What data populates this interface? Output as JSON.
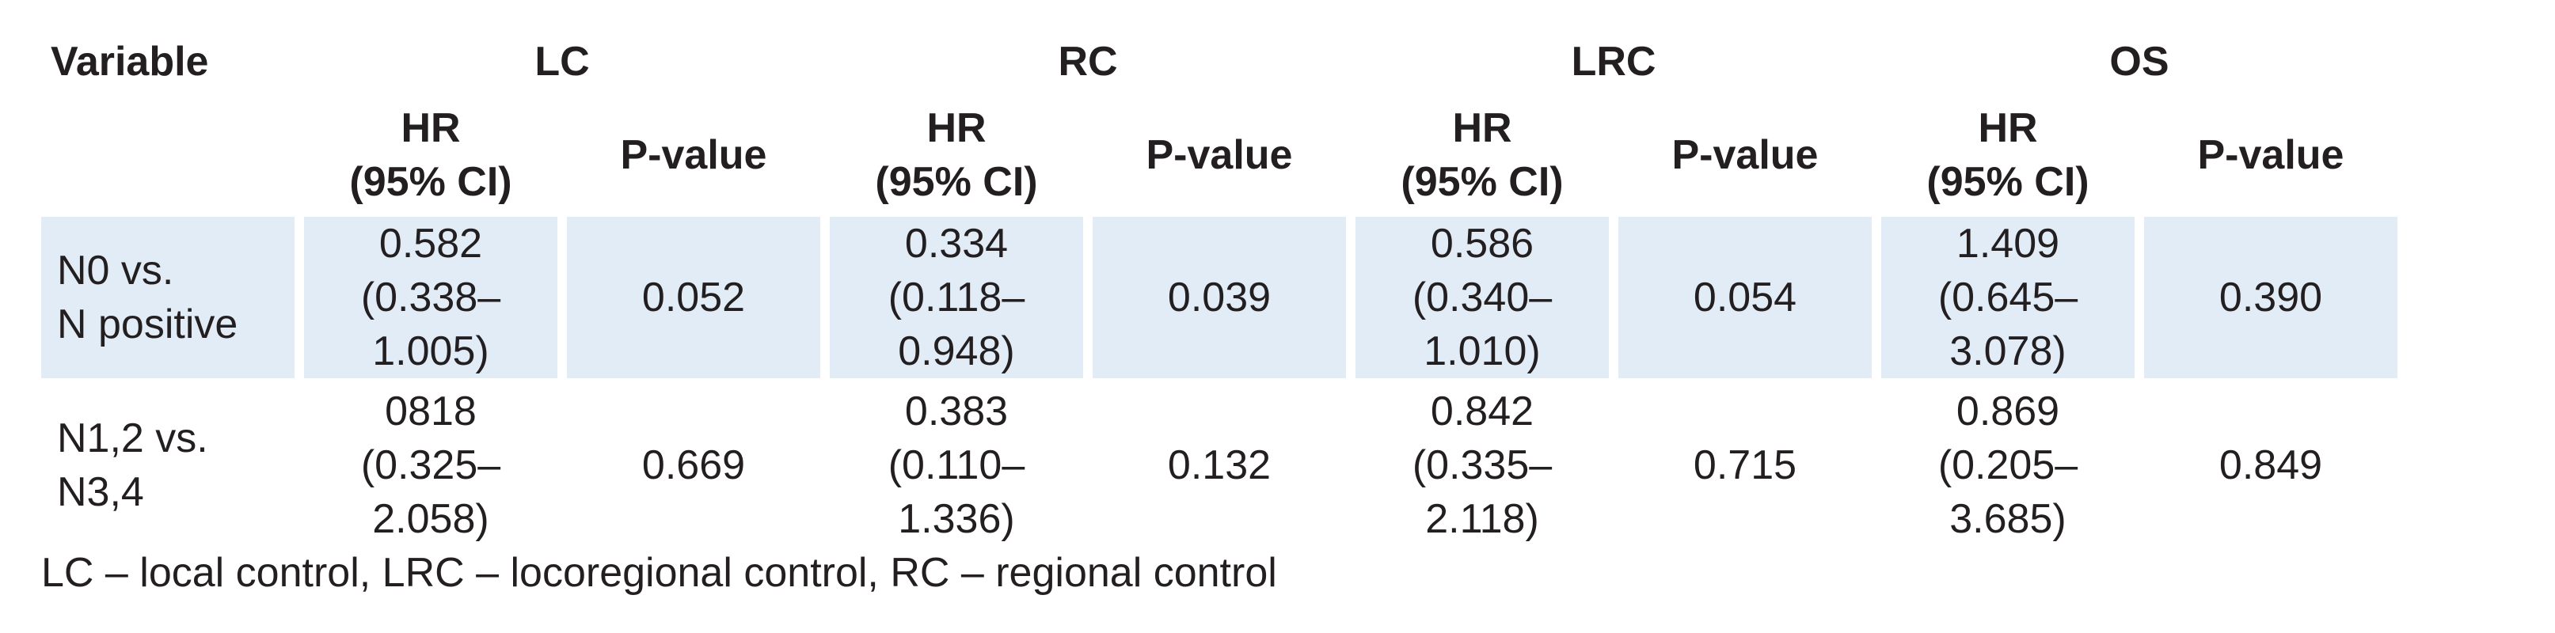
{
  "table": {
    "variable_header": "Variable",
    "groups": [
      "LC",
      "RC",
      "LRC",
      "OS"
    ],
    "hr_header_line1": "HR",
    "hr_header_line2": "(95% CI)",
    "p_header": "P-value",
    "rows": [
      {
        "label_line1": "N0 vs.",
        "label_line2": "N positive",
        "cells": [
          {
            "hr": "0.582",
            "ci": "(0.338–1.005)",
            "p": "0.052"
          },
          {
            "hr": "0.334",
            "ci": "(0.118–0.948)",
            "p": "0.039"
          },
          {
            "hr": "0.586",
            "ci": "(0.340–1.010)",
            "p": "0.054"
          },
          {
            "hr": "1.409",
            "ci": "(0.645–3.078)",
            "p": "0.390"
          }
        ]
      },
      {
        "label_line1": "N1,2 vs.",
        "label_line2": "N3,4",
        "cells": [
          {
            "hr": "0818",
            "ci": "(0.325– 2.058)",
            "p": "0.669"
          },
          {
            "hr": "0.383",
            "ci": "(0.110–1.336)",
            "p": "0.132"
          },
          {
            "hr": "0.842",
            "ci": "(0.335–2.118)",
            "p": "0.715"
          },
          {
            "hr": "0.869",
            "ci": "(0.205–3.685)",
            "p": "0.849"
          }
        ]
      }
    ]
  },
  "footnote": "LC – local control, LRC – locoregional control, RC – regional control",
  "colors": {
    "row_shading": "#e1ecf6",
    "text": "#231f20",
    "background": "#ffffff"
  }
}
